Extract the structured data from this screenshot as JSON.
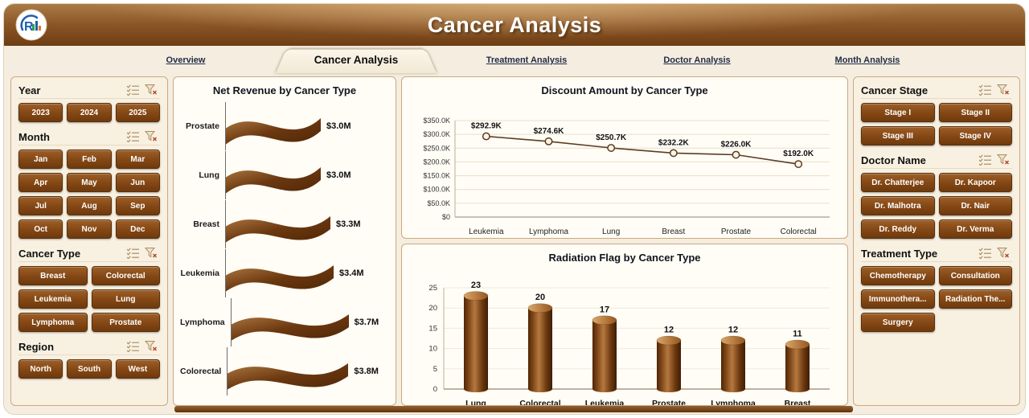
{
  "header": {
    "title": "Cancer Analysis",
    "logo_letter": "R"
  },
  "tabs": [
    {
      "label": "Overview",
      "active": false
    },
    {
      "label": "Cancer Analysis",
      "active": true
    },
    {
      "label": "Treatment Analysis",
      "active": false
    },
    {
      "label": "Doctor Analysis",
      "active": false
    },
    {
      "label": "Month Analysis",
      "active": false
    }
  ],
  "slicers": {
    "year": {
      "title": "Year",
      "columns": 3,
      "options": [
        "2023",
        "2024",
        "2025"
      ]
    },
    "month": {
      "title": "Month",
      "columns": 3,
      "options": [
        "Jan",
        "Feb",
        "Mar",
        "Apr",
        "May",
        "Jun",
        "Jul",
        "Aug",
        "Sep",
        "Oct",
        "Nov",
        "Dec"
      ]
    },
    "cancer_type": {
      "title": "Cancer Type",
      "columns": 2,
      "options": [
        "Breast",
        "Colorectal",
        "Leukemia",
        "Lung",
        "Lymphoma",
        "Prostate"
      ]
    },
    "region": {
      "title": "Region",
      "columns": 3,
      "options": [
        "North",
        "South",
        "West"
      ]
    },
    "cancer_stage": {
      "title": "Cancer Stage",
      "columns": 2,
      "options": [
        "Stage I",
        "Stage II",
        "Stage III",
        "Stage IV"
      ]
    },
    "doctor_name": {
      "title": "Doctor Name",
      "columns": 2,
      "options": [
        "Dr. Chatterjee",
        "Dr. Kapoor",
        "Dr. Malhotra",
        "Dr. Nair",
        "Dr. Reddy",
        "Dr. Verma"
      ]
    },
    "treatment_type": {
      "title": "Treatment Type",
      "columns": 2,
      "options": [
        "Chemotherapy",
        "Consultation",
        "Immunothera...",
        "Radiation The...",
        "Surgery"
      ]
    }
  },
  "chart_data": [
    {
      "type": "funnel",
      "title": "Net Revenue by Cancer Type",
      "categories": [
        "Prostate",
        "Lung",
        "Breast",
        "Leukemia",
        "Lymphoma",
        "Colorectal"
      ],
      "values": [
        3.0,
        3.0,
        3.3,
        3.4,
        3.7,
        3.8
      ],
      "labels": [
        "$3.0M",
        "$3.0M",
        "$3.3M",
        "$3.4M",
        "$3.7M",
        "$3.8M"
      ],
      "unit": "millions USD"
    },
    {
      "type": "line",
      "title": "Discount Amount by Cancer Type",
      "categories": [
        "Leukemia",
        "Lymphoma",
        "Lung",
        "Breast",
        "Prostate",
        "Colorectal"
      ],
      "values": [
        292.9,
        274.6,
        250.7,
        232.2,
        226.0,
        192.0
      ],
      "labels": [
        "$292.9K",
        "$274.6K",
        "$250.7K",
        "$232.2K",
        "$226.0K",
        "$192.0K"
      ],
      "ylim": [
        0,
        350
      ],
      "ytick_step": 50,
      "yticks": [
        "$0",
        "$50.0K",
        "$100.0K",
        "$150.0K",
        "$200.0K",
        "$250.0K",
        "$300.0K",
        "$350.0K"
      ],
      "unit": "thousands USD",
      "grid": true,
      "legend": "none"
    },
    {
      "type": "bar",
      "title": "Radiation Flag by Cancer Type",
      "categories": [
        "Lung",
        "Colorectal",
        "Leukemia",
        "Prostate",
        "Lymphoma",
        "Breast"
      ],
      "values": [
        23,
        20,
        17,
        12,
        12,
        11
      ],
      "ylim": [
        0,
        25
      ],
      "yticks": [
        0,
        5,
        10,
        15,
        20,
        25
      ],
      "grid": false,
      "legend": "none"
    }
  ],
  "colors": {
    "header_brown": "#8a5526",
    "button_brown": "#834714",
    "panel_border": "#cfa87e",
    "background_cream": "#f5eee0",
    "line_stroke": "#5c3d20",
    "label_text": "#111111"
  }
}
